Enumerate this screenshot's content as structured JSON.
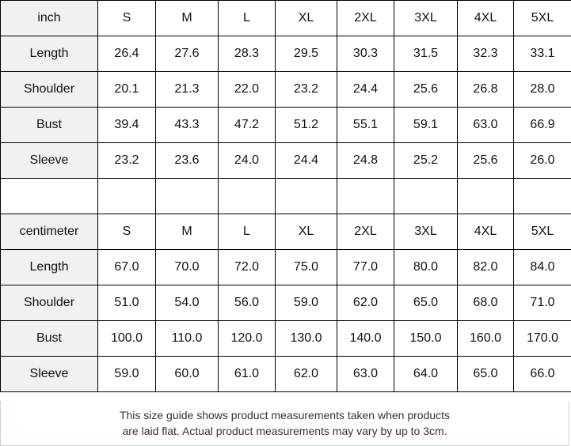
{
  "sizes": [
    "S",
    "M",
    "L",
    "XL",
    "2XL",
    "3XL",
    "4XL",
    "5XL"
  ],
  "tables": [
    {
      "unit": "inch",
      "rows": [
        {
          "label": "Length",
          "values": [
            "26.4",
            "27.6",
            "28.3",
            "29.5",
            "30.3",
            "31.5",
            "32.3",
            "33.1"
          ]
        },
        {
          "label": "Shoulder",
          "values": [
            "20.1",
            "21.3",
            "22.0",
            "23.2",
            "24.4",
            "25.6",
            "26.8",
            "28.0"
          ]
        },
        {
          "label": "Bust",
          "values": [
            "39.4",
            "43.3",
            "47.2",
            "51.2",
            "55.1",
            "59.1",
            "63.0",
            "66.9"
          ]
        },
        {
          "label": "Sleeve",
          "values": [
            "23.2",
            "23.6",
            "24.0",
            "24.4",
            "24.8",
            "25.2",
            "25.6",
            "26.0"
          ]
        }
      ]
    },
    {
      "unit": "centimeter",
      "rows": [
        {
          "label": "Length",
          "values": [
            "67.0",
            "70.0",
            "72.0",
            "75.0",
            "77.0",
            "80.0",
            "82.0",
            "84.0"
          ]
        },
        {
          "label": "Shoulder",
          "values": [
            "51.0",
            "54.0",
            "56.0",
            "59.0",
            "62.0",
            "65.0",
            "68.0",
            "71.0"
          ]
        },
        {
          "label": "Bust",
          "values": [
            "100.0",
            "110.0",
            "120.0",
            "130.0",
            "140.0",
            "150.0",
            "160.0",
            "170.0"
          ]
        },
        {
          "label": "Sleeve",
          "values": [
            "59.0",
            "60.0",
            "61.0",
            "62.0",
            "63.0",
            "64.0",
            "65.0",
            "66.0"
          ]
        }
      ]
    }
  ],
  "footer": {
    "line1": "This size guide shows product measurements taken when products",
    "line2": "are laid flat. Actual product measurements may vary by up to 3cm."
  }
}
